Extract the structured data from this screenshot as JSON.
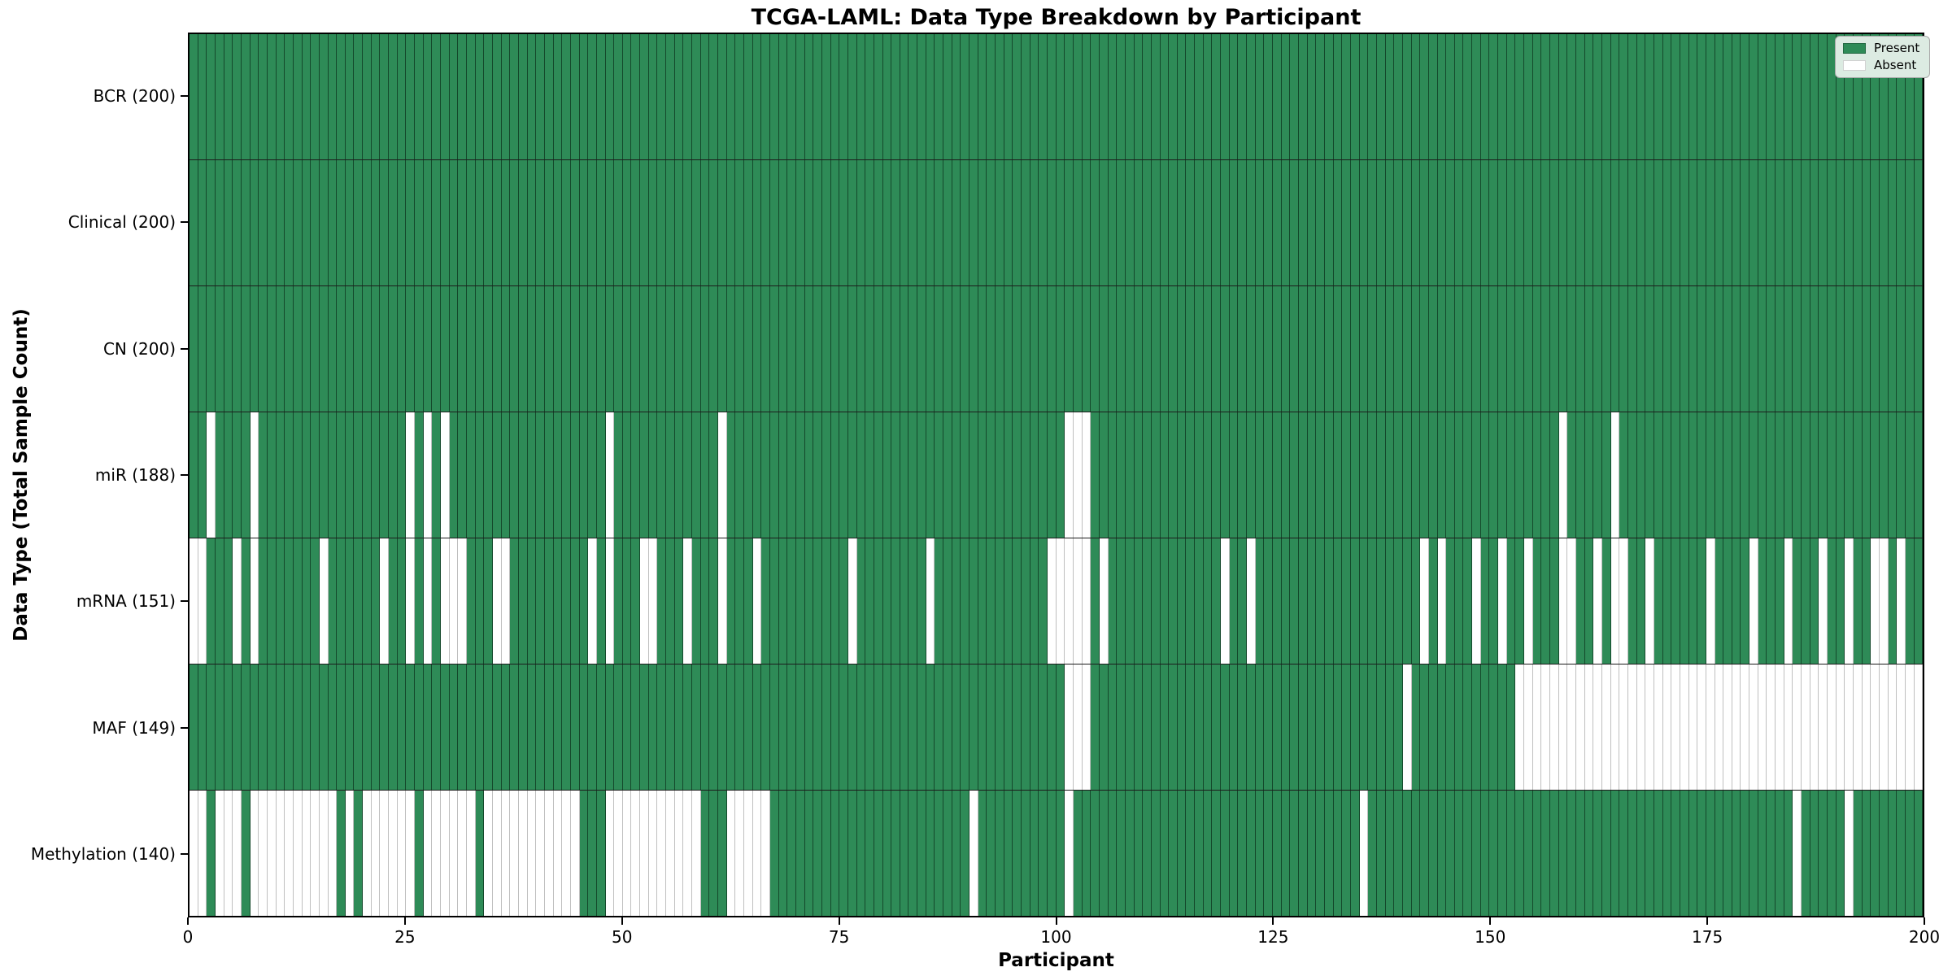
{
  "title": "TCGA-LAML: Data Type Breakdown by Participant",
  "axes": {
    "xlabel": "Participant",
    "ylabel": "Data Type (Total Sample Count)",
    "x_ticks": [
      0,
      25,
      50,
      75,
      100,
      125,
      150,
      175,
      200
    ],
    "x_max": 200
  },
  "legend": {
    "items": [
      {
        "label": "Present",
        "kind": "present"
      },
      {
        "label": "Absent",
        "kind": "absent"
      }
    ]
  },
  "colors": {
    "present": "#2e8b57",
    "absent": "#ffffff",
    "row_divider": "#1c1c1c",
    "spine": "#000000",
    "legend_background": "#dcebe2"
  },
  "chart_data": {
    "type": "heatmap",
    "title": "TCGA-LAML: Data Type Breakdown by Participant",
    "xlabel": "Participant",
    "ylabel": "Data Type (Total Sample Count)",
    "x_range": [
      0,
      200
    ],
    "n_participants": 200,
    "legend": [
      "Present",
      "Absent"
    ],
    "legend_position": "upper right",
    "rows": [
      {
        "label": "BCR (200)",
        "data_type": "BCR",
        "present_count": 200,
        "absent_participants": []
      },
      {
        "label": "Clinical (200)",
        "data_type": "Clinical",
        "present_count": 200,
        "absent_participants": []
      },
      {
        "label": "CN (200)",
        "data_type": "CN",
        "present_count": 200,
        "absent_participants": []
      },
      {
        "label": "miR (188)",
        "data_type": "miR",
        "present_count": 188,
        "absent_participants": [
          2,
          7,
          25,
          27,
          29,
          48,
          61,
          101,
          102,
          103,
          158,
          164
        ]
      },
      {
        "label": "mRNA (151)",
        "data_type": "mRNA",
        "present_count": 151,
        "absent_participants": [
          0,
          1,
          5,
          7,
          15,
          22,
          25,
          27,
          29,
          30,
          31,
          35,
          36,
          46,
          48,
          52,
          53,
          57,
          61,
          65,
          76,
          85,
          99,
          100,
          101,
          102,
          103,
          105,
          119,
          122,
          142,
          144,
          148,
          151,
          154,
          158,
          159,
          162,
          164,
          165,
          168,
          175,
          180,
          184,
          188,
          191,
          194,
          195,
          197
        ]
      },
      {
        "label": "MAF (149)",
        "data_type": "MAF",
        "present_count": 149,
        "absent_participants": [
          101,
          102,
          103,
          140,
          153,
          154,
          155,
          156,
          157,
          158,
          159,
          160,
          161,
          162,
          163,
          164,
          165,
          166,
          167,
          168,
          169,
          170,
          171,
          172,
          173,
          174,
          175,
          176,
          177,
          178,
          179,
          180,
          181,
          182,
          183,
          184,
          185,
          186,
          187,
          188,
          189,
          190,
          191,
          192,
          193,
          194,
          195,
          196,
          197,
          198,
          199
        ]
      },
      {
        "label": "Methylation (140)",
        "data_type": "Methylation",
        "present_count": 140,
        "absent_participants": [
          0,
          1,
          3,
          4,
          5,
          7,
          8,
          9,
          10,
          11,
          12,
          13,
          14,
          15,
          16,
          18,
          20,
          21,
          22,
          23,
          24,
          25,
          27,
          28,
          29,
          30,
          31,
          32,
          34,
          35,
          36,
          37,
          38,
          39,
          40,
          41,
          42,
          43,
          44,
          48,
          49,
          50,
          51,
          52,
          53,
          54,
          55,
          56,
          57,
          58,
          62,
          63,
          64,
          65,
          66,
          90,
          101,
          135,
          185,
          191
        ]
      }
    ]
  }
}
